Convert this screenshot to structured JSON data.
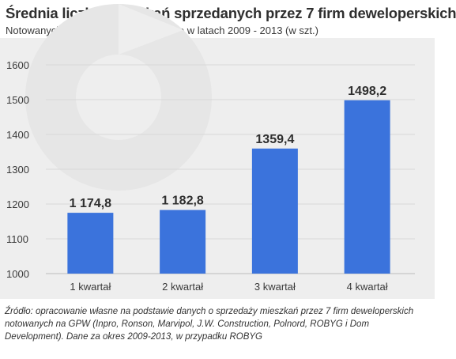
{
  "header": {
    "title": "Średnia liczba mieszkań sprzedanych przez 7 firm deweloperskich",
    "subtitle": "Notowanych na warszawskim parkiecie w latach 2009 - 2013 (w szt.)"
  },
  "chart_data": {
    "type": "bar",
    "title": "Średnia liczba mieszkań sprzedanych przez 7 firm deweloperskich",
    "subtitle": "Notowanych na warszawskim parkiecie w latach 2009 - 2013 (w szt.)",
    "categories": [
      "1 kwartał",
      "2 kwartał",
      "3 kwartał",
      "4 kwartał"
    ],
    "values": [
      1174.8,
      1182.8,
      1359.4,
      1498.2
    ],
    "value_labels": [
      "1 174,8",
      "1 182,8",
      "1359,4",
      "1498,2"
    ],
    "y_ticks": [
      "1000",
      "1100",
      "1200",
      "1300",
      "1400",
      "1500",
      "1600"
    ],
    "ylim": [
      1000,
      1600
    ],
    "xlabel": "",
    "ylabel": "",
    "grid": true,
    "bar_color": "#3b73dc"
  },
  "source": {
    "text": "Źródło: opracowanie własne na podstawie danych o sprzedaży mieszkań przez 7 firm deweloperskich notowanych na GPW (Inpro, Ronson, Marvipol, J.W. Construction, Polnord, ROBYG i Dom Development). Dane za okres 2009-2013, w przypadku ROBYG"
  }
}
